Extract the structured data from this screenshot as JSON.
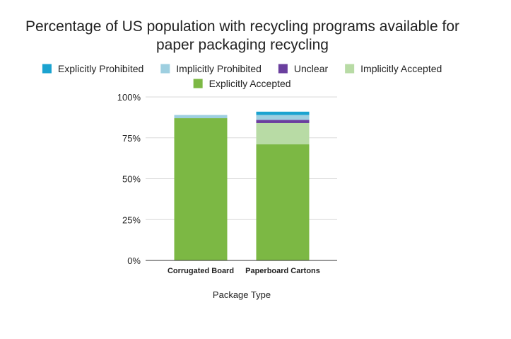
{
  "chart_data": {
    "type": "bar",
    "stacked": true,
    "title_lines": [
      "Percentage of US population with recycling programs available for",
      "paper packaging recycling"
    ],
    "xlabel": "Package Type",
    "ylabel": "",
    "categories": [
      "Corrugated Board",
      "Paperboard Cartons"
    ],
    "y_tick_labels": [
      "0%",
      "25%",
      "50%",
      "75%",
      "100%"
    ],
    "y_ticks": [
      0,
      25,
      50,
      75,
      100
    ],
    "ylim": [
      0,
      100
    ],
    "grid": true,
    "legend_position": "top",
    "series": [
      {
        "name": "Explicitly Accepted",
        "color": "#7cb844",
        "values": [
          87,
          71
        ]
      },
      {
        "name": "Implicitly Accepted",
        "color": "#b8dba5",
        "values": [
          0,
          13
        ]
      },
      {
        "name": "Unclear",
        "color": "#6a3f9e",
        "values": [
          0,
          2
        ]
      },
      {
        "name": "Implicitly Prohibited",
        "color": "#9ecfe0",
        "values": [
          2,
          3
        ]
      },
      {
        "name": "Explicitly Prohibited",
        "color": "#1ba3d0",
        "values": [
          0,
          2
        ]
      }
    ],
    "legend_order": [
      "Explicitly Prohibited",
      "Implicitly Prohibited",
      "Unclear",
      "Implicitly Accepted",
      "Explicitly Accepted"
    ]
  }
}
